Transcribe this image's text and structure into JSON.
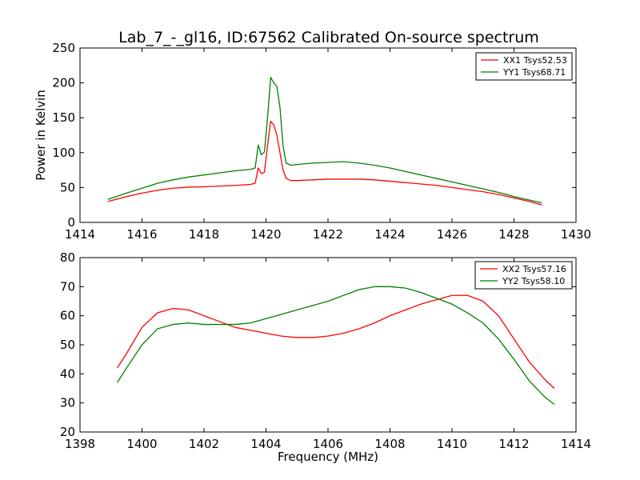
{
  "figure": {
    "title": "Lab_7_-_gl16, ID:67562 Calibrated On-source spectrum",
    "xlabel": "Frequency (MHz)"
  },
  "colors": {
    "red": "#ff0000",
    "green": "#008000"
  },
  "chart_data": [
    {
      "type": "line",
      "title": "Lab_7_-_gl16, ID:67562 Calibrated On-source spectrum",
      "xlabel": "",
      "ylabel": "Power in Kelvin",
      "xlim": [
        1414,
        1430
      ],
      "ylim": [
        0,
        250
      ],
      "xticks": [
        1414,
        1416,
        1418,
        1420,
        1422,
        1424,
        1426,
        1428,
        1430
      ],
      "yticks": [
        0,
        50,
        100,
        150,
        200,
        250
      ],
      "grid": false,
      "legend_position": "top-right",
      "series": [
        {
          "name": "XX1 Tsys52.53",
          "color": "#ff0000",
          "x": [
            1414.9,
            1415.5,
            1416,
            1416.5,
            1417,
            1417.5,
            1418,
            1418.5,
            1419,
            1419.5,
            1419.65,
            1419.75,
            1419.85,
            1419.95,
            1420.05,
            1420.15,
            1420.25,
            1420.35,
            1420.45,
            1420.55,
            1420.65,
            1420.8,
            1421,
            1421.5,
            1422,
            1422.5,
            1423,
            1423.5,
            1424,
            1424.5,
            1425,
            1425.5,
            1426,
            1426.5,
            1427,
            1427.5,
            1428,
            1428.5,
            1428.9
          ],
          "y": [
            30,
            37,
            42,
            46,
            49,
            50.5,
            51,
            52,
            53,
            54.5,
            56,
            78,
            70,
            72,
            110,
            145,
            140,
            125,
            100,
            75,
            63,
            60,
            60,
            61,
            62,
            62,
            62,
            61,
            59,
            57,
            55,
            53,
            50,
            47,
            44,
            40,
            35,
            30,
            25
          ]
        },
        {
          "name": "YY1 Tsys68.71",
          "color": "#008000",
          "x": [
            1414.9,
            1415.5,
            1416,
            1416.5,
            1417,
            1417.5,
            1418,
            1418.5,
            1419,
            1419.5,
            1419.65,
            1419.75,
            1419.85,
            1419.95,
            1420.05,
            1420.15,
            1420.25,
            1420.35,
            1420.45,
            1420.55,
            1420.65,
            1420.8,
            1421,
            1421.5,
            1422,
            1422.5,
            1423,
            1423.5,
            1424,
            1424.5,
            1425,
            1425.5,
            1426,
            1426.5,
            1427,
            1427.5,
            1428,
            1428.5,
            1428.9
          ],
          "y": [
            33,
            42,
            49,
            56,
            61,
            65,
            68,
            71,
            74,
            76,
            78,
            111,
            97,
            101,
            150,
            208,
            200,
            195,
            165,
            110,
            85,
            82,
            83,
            85,
            86,
            87,
            85,
            82,
            78,
            73,
            68,
            63,
            58,
            53,
            48,
            43,
            37,
            32,
            28
          ]
        }
      ]
    },
    {
      "type": "line",
      "title": "",
      "xlabel": "Frequency (MHz)",
      "ylabel": "",
      "xlim": [
        1398,
        1414
      ],
      "ylim": [
        20,
        80
      ],
      "xticks": [
        1398,
        1400,
        1402,
        1404,
        1406,
        1408,
        1410,
        1412,
        1414
      ],
      "yticks": [
        20,
        30,
        40,
        50,
        60,
        70,
        80
      ],
      "grid": false,
      "legend_position": "top-right",
      "series": [
        {
          "name": "XX2 Tsys57.16",
          "color": "#ff0000",
          "x": [
            1399.2,
            1399.5,
            1400,
            1400.5,
            1401,
            1401.5,
            1402,
            1402.5,
            1403,
            1403.5,
            1404,
            1404.5,
            1405,
            1405.5,
            1406,
            1406.5,
            1407,
            1407.5,
            1408,
            1408.5,
            1409,
            1409.5,
            1410,
            1410.5,
            1411,
            1411.5,
            1412,
            1412.5,
            1413,
            1413.3
          ],
          "y": [
            42,
            47,
            56,
            61,
            62.5,
            62,
            60,
            58,
            56,
            55,
            54,
            53,
            52.5,
            52.5,
            53,
            54,
            55.5,
            57.5,
            60,
            62,
            64,
            65.5,
            67,
            67,
            65,
            60,
            52,
            44,
            38,
            35
          ]
        },
        {
          "name": "YY2 Tsys58.10",
          "color": "#008000",
          "x": [
            1399.2,
            1399.5,
            1400,
            1400.5,
            1401,
            1401.5,
            1402,
            1402.5,
            1403,
            1403.5,
            1404,
            1404.5,
            1405,
            1405.5,
            1406,
            1406.5,
            1407,
            1407.5,
            1408,
            1408.5,
            1409,
            1409.5,
            1410,
            1410.5,
            1411,
            1411.5,
            1412,
            1412.5,
            1413,
            1413.3
          ],
          "y": [
            37,
            42,
            50,
            55.5,
            57,
            57.5,
            57,
            57,
            57,
            57.5,
            59,
            60.5,
            62,
            63.5,
            65,
            67,
            69,
            70,
            70,
            69.5,
            68,
            66,
            64,
            61,
            57.5,
            52,
            45,
            37.5,
            32,
            29.5
          ]
        }
      ]
    }
  ]
}
